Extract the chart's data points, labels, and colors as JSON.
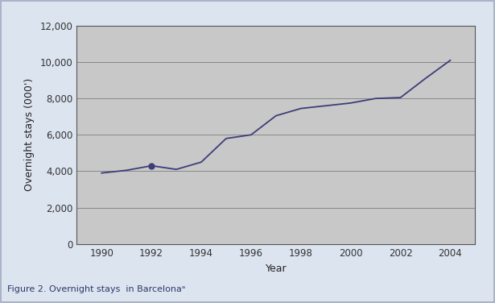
{
  "years": [
    1990,
    1991,
    1992,
    1993,
    1994,
    1995,
    1996,
    1997,
    1998,
    1999,
    2000,
    2001,
    2002,
    2003,
    2004
  ],
  "values": [
    3900,
    4050,
    4300,
    4100,
    4500,
    5800,
    6000,
    7050,
    7450,
    7600,
    7750,
    8000,
    8050,
    9100,
    10100
  ],
  "marker_year": 1992,
  "marker_value": 4300,
  "line_color": "#3d3d7a",
  "marker_color": "#3d3d7a",
  "plot_bg_color": "#c8c8c8",
  "fig_bg_color": "#dce4f0",
  "outer_border_color": "#a0aac0",
  "xlabel": "Year",
  "ylabel": "Overnight stays (000')",
  "caption": "Figure 2. Overnight stays  in Barcelonaᵃ",
  "xlim": [
    1989.0,
    2005.0
  ],
  "ylim": [
    0,
    12000
  ],
  "xticks": [
    1990,
    1992,
    1994,
    1996,
    1998,
    2000,
    2002,
    2004
  ],
  "yticks": [
    0,
    2000,
    4000,
    6000,
    8000,
    10000,
    12000
  ],
  "ytick_labels": [
    "0",
    "2,000",
    "4,000",
    "6,000",
    "8,000",
    "10,000",
    "12,000"
  ],
  "caption_fontsize": 8,
  "axis_label_fontsize": 9,
  "tick_fontsize": 8.5,
  "grid_color": "#888888",
  "spine_color": "#555555"
}
